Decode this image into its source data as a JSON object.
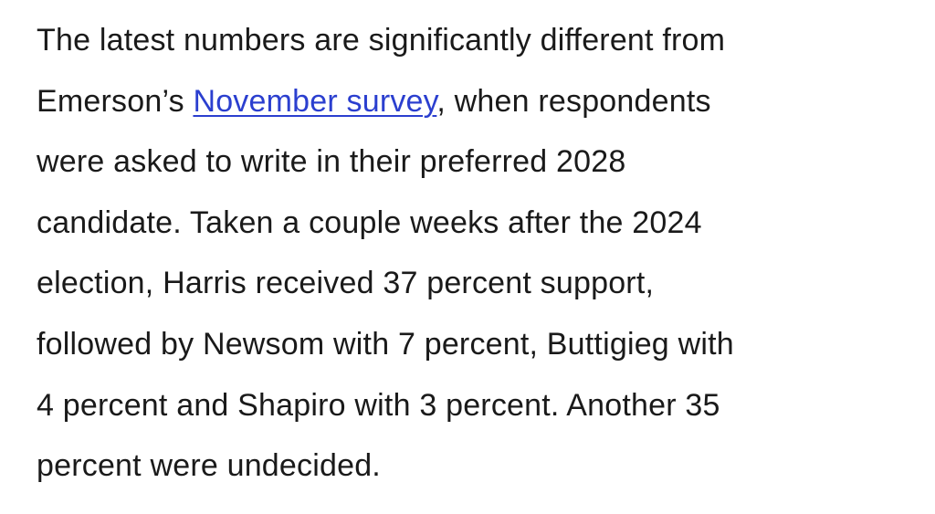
{
  "paragraph": {
    "lines": [
      "The latest numbers are significantly different from",
      {
        "before": "Emerson’s ",
        "link": "November survey",
        "after": ", when respondents"
      },
      "were asked to write in their preferred 2028",
      "candidate. Taken a couple weeks after the 2024",
      "election, Harris received 37 percent support,",
      "followed by Newsom with 7 percent, Buttigieg with",
      "4 percent and Shapiro with 3 percent. Another 35",
      "percent were undecided."
    ]
  }
}
